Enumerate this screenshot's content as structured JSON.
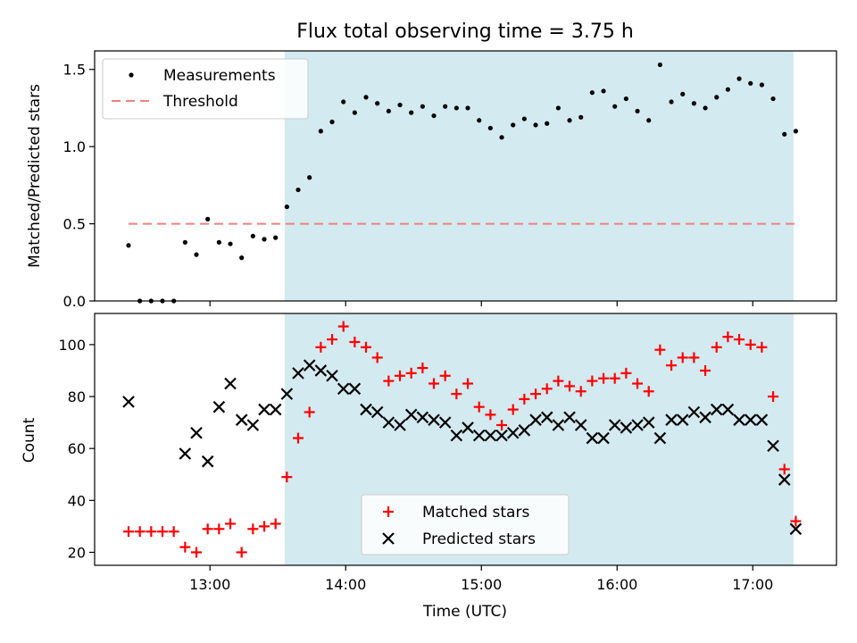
{
  "chart_data": [
    {
      "type": "scatter",
      "title": "Flux total observing time = 3.75 h",
      "xlabel": "",
      "ylabel": "Matched/Predicted stars",
      "ylim": [
        0,
        1.62
      ],
      "yticks": [
        "0.0",
        "0.5",
        "1.0",
        "1.5"
      ],
      "legend_position": "top-left",
      "shaded_interval": {
        "start": "13:33",
        "end": "17:18",
        "color": "#d3eaf0"
      },
      "threshold": {
        "name": "Threshold",
        "value": 0.5,
        "color": "#f08080"
      },
      "series": [
        {
          "name": "Measurements",
          "color": "#000000",
          "marker": "dot",
          "x": [
            "12:24",
            "12:29",
            "12:34",
            "12:39",
            "12:44",
            "12:49",
            "12:54",
            "12:59",
            "13:04",
            "13:09",
            "13:14",
            "13:19",
            "13:24",
            "13:29",
            "13:34",
            "13:39",
            "13:44",
            "13:49",
            "13:54",
            "13:59",
            "14:04",
            "14:09",
            "14:14",
            "14:19",
            "14:24",
            "14:29",
            "14:34",
            "14:39",
            "14:44",
            "14:49",
            "14:54",
            "14:59",
            "15:04",
            "15:09",
            "15:14",
            "15:19",
            "15:24",
            "15:29",
            "15:34",
            "15:39",
            "15:44",
            "15:49",
            "15:54",
            "15:59",
            "16:04",
            "16:09",
            "16:14",
            "16:19",
            "16:24",
            "16:29",
            "16:34",
            "16:39",
            "16:44",
            "16:49",
            "16:54",
            "16:59",
            "17:04",
            "17:09",
            "17:14",
            "17:19"
          ],
          "y": [
            0.36,
            0.0,
            0.0,
            0.0,
            0.0,
            0.38,
            0.3,
            0.53,
            0.38,
            0.37,
            0.28,
            0.42,
            0.4,
            0.41,
            0.61,
            0.72,
            0.8,
            1.1,
            1.16,
            1.29,
            1.22,
            1.32,
            1.28,
            1.23,
            1.27,
            1.22,
            1.26,
            1.2,
            1.26,
            1.25,
            1.25,
            1.17,
            1.12,
            1.06,
            1.14,
            1.18,
            1.14,
            1.15,
            1.25,
            1.17,
            1.19,
            1.35,
            1.36,
            1.26,
            1.31,
            1.23,
            1.17,
            1.53,
            1.29,
            1.34,
            1.28,
            1.25,
            1.32,
            1.37,
            1.44,
            1.41,
            1.4,
            1.31,
            1.08,
            1.1
          ]
        }
      ]
    },
    {
      "type": "scatter",
      "title": "",
      "xlabel": "Time (UTC)",
      "ylabel": "Count",
      "ylim": [
        15,
        112
      ],
      "yticks": [
        "20",
        "40",
        "60",
        "80",
        "100"
      ],
      "xticks": [
        "13:00",
        "14:00",
        "15:00",
        "16:00",
        "17:00"
      ],
      "xlim": [
        "12:09",
        "17:37"
      ],
      "legend_position": "bottom-center",
      "shaded_interval": {
        "start": "13:33",
        "end": "17:18",
        "color": "#d3eaf0"
      },
      "series": [
        {
          "name": "Matched stars",
          "color": "#ff0000",
          "marker": "plus",
          "x": [
            "12:24",
            "12:29",
            "12:34",
            "12:39",
            "12:44",
            "12:49",
            "12:54",
            "12:59",
            "13:04",
            "13:09",
            "13:14",
            "13:19",
            "13:24",
            "13:29",
            "13:34",
            "13:39",
            "13:44",
            "13:49",
            "13:54",
            "13:59",
            "14:04",
            "14:09",
            "14:14",
            "14:19",
            "14:24",
            "14:29",
            "14:34",
            "14:39",
            "14:44",
            "14:49",
            "14:54",
            "14:59",
            "15:04",
            "15:09",
            "15:14",
            "15:19",
            "15:24",
            "15:29",
            "15:34",
            "15:39",
            "15:44",
            "15:49",
            "15:54",
            "15:59",
            "16:04",
            "16:09",
            "16:14",
            "16:19",
            "16:24",
            "16:29",
            "16:34",
            "16:39",
            "16:44",
            "16:49",
            "16:54",
            "16:59",
            "17:04",
            "17:09",
            "17:14",
            "17:19"
          ],
          "y": [
            28,
            28,
            28,
            28,
            28,
            22,
            20,
            29,
            29,
            31,
            20,
            29,
            30,
            31,
            49,
            64,
            74,
            99,
            102,
            107,
            101,
            99,
            95,
            86,
            88,
            89,
            91,
            85,
            88,
            81,
            85,
            76,
            73,
            69,
            75,
            79,
            81,
            83,
            86,
            84,
            82,
            86,
            87,
            87,
            89,
            85,
            82,
            98,
            92,
            95,
            95,
            90,
            99,
            103,
            102,
            100,
            99,
            80,
            52,
            32
          ]
        },
        {
          "name": "Predicted stars",
          "color": "#000000",
          "marker": "x",
          "x": [
            "12:24",
            "12:49",
            "12:54",
            "12:59",
            "13:04",
            "13:09",
            "13:14",
            "13:19",
            "13:24",
            "13:29",
            "13:34",
            "13:39",
            "13:44",
            "13:49",
            "13:54",
            "13:59",
            "14:04",
            "14:09",
            "14:14",
            "14:19",
            "14:24",
            "14:29",
            "14:34",
            "14:39",
            "14:44",
            "14:49",
            "14:54",
            "14:59",
            "15:04",
            "15:09",
            "15:14",
            "15:19",
            "15:24",
            "15:29",
            "15:34",
            "15:39",
            "15:44",
            "15:49",
            "15:54",
            "15:59",
            "16:04",
            "16:09",
            "16:14",
            "16:19",
            "16:24",
            "16:29",
            "16:34",
            "16:39",
            "16:44",
            "16:49",
            "16:54",
            "16:59",
            "17:04",
            "17:09",
            "17:14",
            "17:19"
          ],
          "y": [
            78,
            58,
            66,
            55,
            76,
            85,
            71,
            69,
            75,
            75,
            81,
            89,
            92,
            90,
            88,
            83,
            83,
            75,
            74,
            70,
            69,
            73,
            72,
            71,
            70,
            65,
            68,
            65,
            65,
            65,
            66,
            67,
            71,
            72,
            69,
            72,
            69,
            64,
            64,
            69,
            68,
            69,
            70,
            64,
            71,
            71,
            74,
            72,
            75,
            75,
            71,
            71,
            71,
            61,
            48,
            29
          ]
        }
      ]
    }
  ]
}
